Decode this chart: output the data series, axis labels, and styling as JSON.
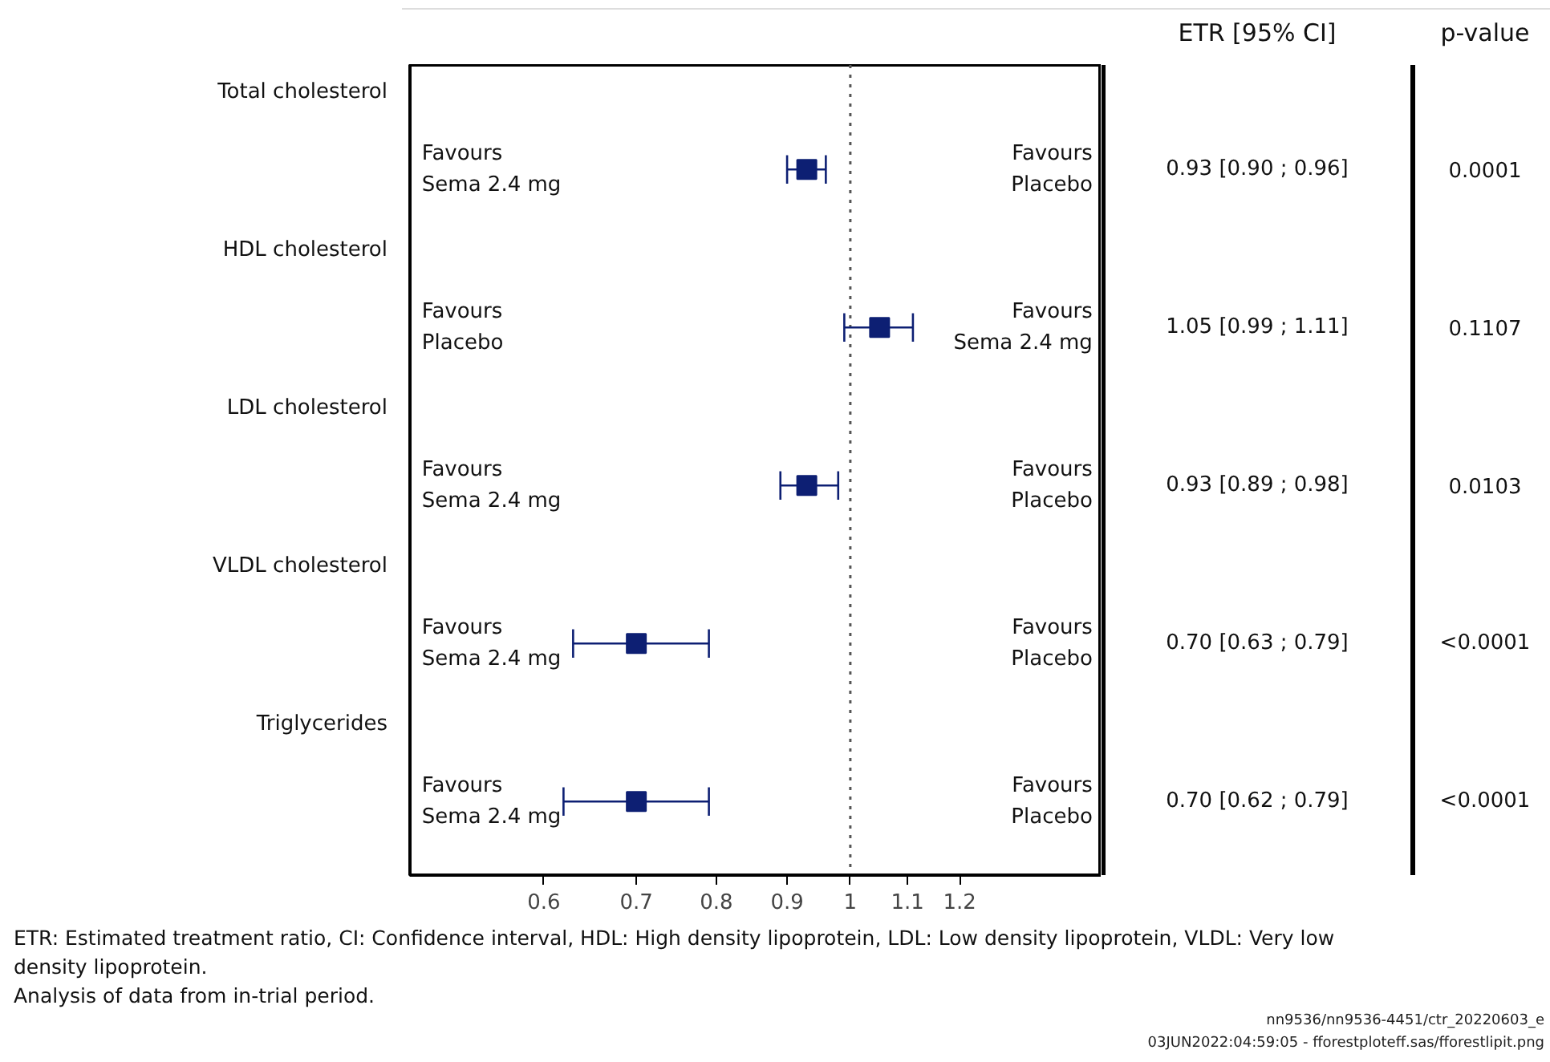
{
  "chart_data": {
    "type": "scatter",
    "orientation": "horizontal",
    "log": "x",
    "marker": "square",
    "categories": [
      "Total cholesterol",
      "HDL cholesterol",
      "LDL cholesterol",
      "VLDL cholesterol",
      "Triglycerides"
    ],
    "values": [
      0.93,
      1.05,
      0.93,
      0.7,
      0.7
    ],
    "errors": [
      [
        0.9,
        0.96
      ],
      [
        0.99,
        1.11
      ],
      [
        0.89,
        0.98
      ],
      [
        0.63,
        0.79
      ],
      [
        0.62,
        0.79
      ]
    ],
    "value_labels": [
      "0.93 [0.90 ; 0.96]",
      "1.05 [0.99 ; 1.11]",
      "0.93 [0.89 ; 0.98]",
      "0.70 [0.63 ; 0.79]",
      "0.70 [0.62 ; 0.79]"
    ],
    "color": "#0d1f73",
    "xlim": [
      0.48,
      1.52
    ],
    "xticks": [
      0.6,
      0.7,
      0.8,
      0.9,
      1,
      1.1,
      1.2
    ],
    "ref_lines": [
      {
        "axis": "x",
        "value": 1,
        "line_style": "dotted",
        "color": "#555555"
      }
    ],
    "grid": false,
    "annotations": [
      "ETR [95% CI]",
      "p-value",
      "ETR: Estimated treatment ratio, CI: Confidence interval, HDL: High density lipoprotein, LDL: Low density lipoprotein, VLDL: Very low density lipoprotein.",
      "Analysis of data from in-trial period.",
      "nn9536/nn9536-4451/ctr_20220603_e",
      "03JUN2022:04:59:05 - fforestploteff.sas/fforestlipit.png",
      "0.0001",
      "0.1107",
      "0.0103",
      "<0.0001",
      "<0.0001",
      "Favours\nSema 2.4 mg",
      "Favours\nPlacebo",
      "Favours\nPlacebo",
      "Favours\nSema 2.4 mg",
      "Favours\nSema 2.4 mg",
      "Favours\nPlacebo",
      "Favours\nSema 2.4 mg",
      "Favours\nPlacebo",
      "Favours\nSema 2.4 mg",
      "Favours\nPlacebo"
    ]
  }
}
